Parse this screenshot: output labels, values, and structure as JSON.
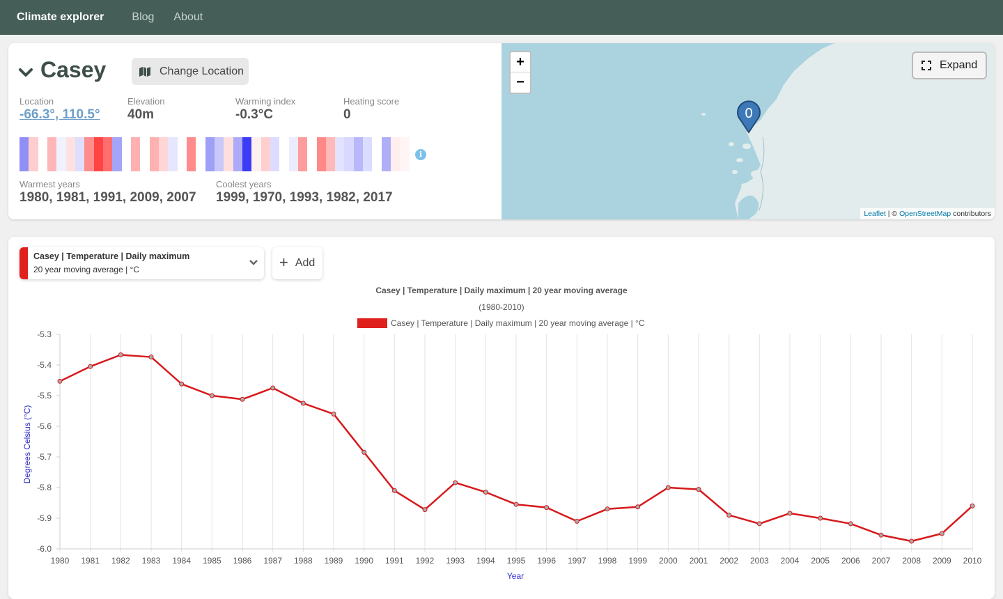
{
  "nav": {
    "brand": "Climate explorer",
    "links": [
      "Blog",
      "About"
    ]
  },
  "location": {
    "name": "Casey",
    "change_label": "Change Location",
    "stats": {
      "location_label": "Location",
      "location_value": "-66.3°, 110.5°",
      "elevation_label": "Elevation",
      "elevation_value": "40m",
      "warming_label": "Warming index",
      "warming_value": "-0.3°C",
      "heating_label": "Heating score",
      "heating_value": "0"
    },
    "warmest_label": "Warmest years",
    "warmest_value": "1980, 1981, 1991, 2009, 2007",
    "coolest_label": "Coolest years",
    "coolest_value": "1999, 1970, 1993, 1982, 2017",
    "stripes": [
      "#8f8ff5",
      "#ffcdcd",
      "#ffffff",
      "#ffb6b6",
      "#f2f2ff",
      "#ffe1e1",
      "#dedeff",
      "#ff8d8d",
      "#ff4444",
      "#ff6e6e",
      "#a4a4f8",
      "#ffffff",
      "#ffb0b0",
      "#ffffff",
      "#ffb1b1",
      "#ffd6d6",
      "#e6e6ff",
      "#ffffff",
      "#ff8c8c",
      "#ffffff",
      "#9f9ff8",
      "#c8c8fb",
      "#ffdede",
      "#ababf9",
      "#3c3cf5",
      "#fff0f0",
      "#ffcfcf",
      "#dcdcff",
      "#ffffff",
      "#ececff",
      "#ff9c9c",
      "#ffffff",
      "#ff8888",
      "#ffb9b9",
      "#e3e3ff",
      "#d9d9ff",
      "#b8b8fa",
      "#dcdcff",
      "#ffffff",
      "#aeaef9",
      "#ffeeee",
      "#fff5f5"
    ]
  },
  "map": {
    "zoom_in": "+",
    "zoom_out": "−",
    "expand_label": "Expand",
    "marker_label": "0",
    "attribution_leaflet": "Leaflet",
    "attribution_sep": " | © ",
    "attribution_osm": "OpenStreetMap",
    "attribution_rest": " contributors"
  },
  "series": {
    "line1": "Casey | Temperature | Daily maximum",
    "line2": "20 year moving average | °C",
    "add_label": "Add",
    "color": "#e0201d"
  },
  "chart_data": {
    "type": "line",
    "title": "Casey | Temperature | Daily maximum | 20 year moving average",
    "subtitle": "(1980-2010)",
    "legend": "Casey | Temperature | Daily maximum | 20 year moving average | °C",
    "xlabel": "Year",
    "ylabel": "Degrees Celsius (°C)",
    "ylim": [
      -6.0,
      -5.3
    ],
    "yticks": [
      "-5.3",
      "-5.4",
      "-5.5",
      "-5.6",
      "-5.7",
      "-5.8",
      "-5.9",
      "-6.0"
    ],
    "x": [
      "1980",
      "1981",
      "1982",
      "1983",
      "1984",
      "1985",
      "1986",
      "1987",
      "1988",
      "1989",
      "1990",
      "1991",
      "1992",
      "1993",
      "1994",
      "1995",
      "1996",
      "1997",
      "1998",
      "1999",
      "2000",
      "2001",
      "2002",
      "2003",
      "2004",
      "2005",
      "2006",
      "2007",
      "2008",
      "2009",
      "2010"
    ],
    "series": [
      {
        "name": "Casey | Temperature | Daily maximum | 20 year moving average | °C",
        "values": [
          -5.453,
          -5.405,
          -5.367,
          -5.374,
          -5.462,
          -5.5,
          -5.512,
          -5.475,
          -5.525,
          -5.56,
          -5.685,
          -5.81,
          -5.872,
          -5.784,
          -5.815,
          -5.855,
          -5.865,
          -5.91,
          -5.87,
          -5.863,
          -5.8,
          -5.806,
          -5.89,
          -5.918,
          -5.884,
          -5.9,
          -5.918,
          -5.955,
          -5.975,
          -5.95,
          -5.86
        ]
      }
    ]
  }
}
